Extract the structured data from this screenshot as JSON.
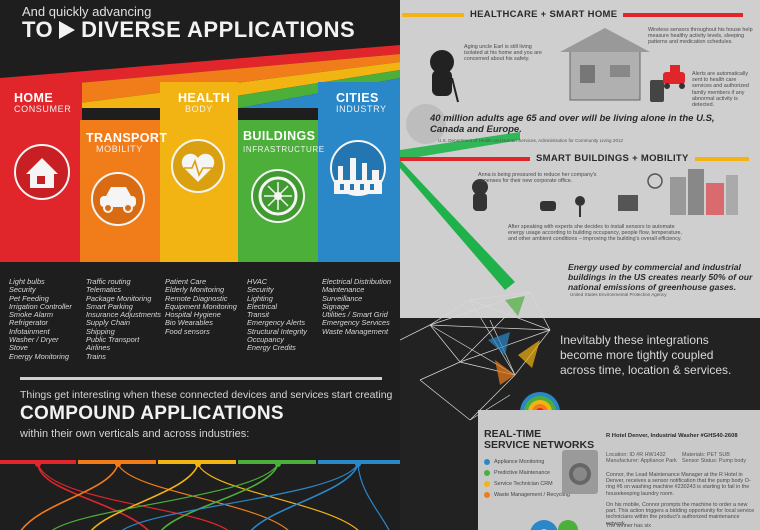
{
  "left": {
    "intro": "And quickly advancing",
    "headline_pre": "TO",
    "headline_post": "DIVERSE APPLICATIONS",
    "categories": [
      {
        "title": "HOME",
        "sub": "CONSUMER",
        "color": "#e0262b",
        "icon": "house-icon",
        "items": [
          "Light bulbs",
          "Security",
          "Pet Feeding",
          "Irrigation Controller",
          "Smoke Alarm",
          "Refrigerator",
          "Infotainment",
          "Washer / Dryer",
          "Stove",
          "Energy Monitoring"
        ]
      },
      {
        "title": "TRANSPORT",
        "sub": "MOBILITY",
        "color": "#f07d1a",
        "icon": "car-icon",
        "items": [
          "Traffic routing",
          "Telematics",
          "Package Monitoring",
          "Smart Parking",
          "Insurance Adjustments",
          "Supply Chain",
          "Shipping",
          "Public Transport",
          "Airlines",
          "Trains"
        ]
      },
      {
        "title": "HEALTH",
        "sub": "BODY",
        "color": "#f2b413",
        "icon": "heart-icon",
        "items": [
          "Patient Care",
          "Elderly Monitoring",
          "Remote Diagnostic",
          "Equipment Monitoring",
          "Hospital Hygiene",
          "Bio Wearables",
          "Food sensors"
        ]
      },
      {
        "title": "BUILDINGS",
        "sub": "INFRASTRUCTURE",
        "color": "#4caf3a",
        "icon": "hvac-fan-icon",
        "items": [
          "HVAC",
          "Security",
          "Lighting",
          "Electrical",
          "Transit",
          "Emergency Alerts",
          "Structural Integrity",
          "Occupancy",
          "Energy Credits"
        ]
      },
      {
        "title": "CITIES",
        "sub": "INDUSTRY",
        "color": "#2a88c9",
        "icon": "factory-icon",
        "items": [
          "Electrical Distribution",
          "Maintenance",
          "Surveillance",
          "Signage",
          "Utilities / Smart Grid",
          "Emergency Services",
          "Waste Management"
        ]
      }
    ],
    "things": "Things get interesting when these connected devices and services start creating",
    "compound": "COMPOUND APPLICATIONS",
    "within": "within their own verticals and across industries:"
  },
  "right": {
    "health_head": "HEALTHCARE + SMART HOME",
    "health_text": "Aging uncle Earl is still living isolated at his home and you are concerned about his safety.",
    "sensor_text": "Wireless sensors throughout his house help measure healthy activity levels, sleeping patterns and medication schedules.",
    "alert_text": "Alerts are automatically sent to health care services and authorized family members if any abnormal activity is detected.",
    "stat": "40 million adults age 65 and over will be living alone in the U.S, Canada and Europe.",
    "stat_src": "U.S. Department of Health and Human Services, Administration for Community Living 2012",
    "buildings_head": "SMART BUILDINGS + MOBILITY",
    "anna_text": "Anna is being pressured to reduce her company's expenses for their new corporate office.",
    "experts_text": "After speaking with experts she decides to install sensors to automate energy usage according to building occupancy, people flow, temperature, and other ambient conditions – improving the building's overall efficiency.",
    "stat2": "Energy used by commercial and industrial buildings in the US creates nearly 50% of our national emissions of greenhouse gases.",
    "stat2_src": "United States Environmental Protection Agency",
    "inevitably": "Inevitably these integrations become more tightly coupled across time, location & services.",
    "rt_title_1": "REAL-TIME",
    "rt_title_2": "SERVICE NETWORKS",
    "legend": [
      {
        "label": "Appliance Monitoring",
        "color": "#2a88c9"
      },
      {
        "label": "Predictive Maintenance",
        "color": "#4caf3a"
      },
      {
        "label": "Service Technician CRM",
        "color": "#f2b413"
      },
      {
        "label": "Waste Management / Recycling",
        "color": "#f07d1a"
      }
    ],
    "hotel_title": "R Hotel Denver, Industrial Washer #GHS40-2608",
    "hotel_meta_1": "Location: ID #R HW1432",
    "hotel_meta_2": "Manufacturer: Appliance Park",
    "hotel_meta_3": "Materials: PET SUB",
    "hotel_meta_4": "Sensor Status: Pump body",
    "connor_text": "Connor, the Lead Maintenance Manager at the R Hotel in Denver, receives a sensor notification that the pump body O-ring #6 on washing machine #230243 is starting to fail in the housekeeping laundry room.",
    "order_text": "On his mobile, Connor prompts the machine to order a new part. This action triggers a bidding opportunity for local service technicians within the product's authorized maintenance network.",
    "winner_text": "The winner has six"
  }
}
